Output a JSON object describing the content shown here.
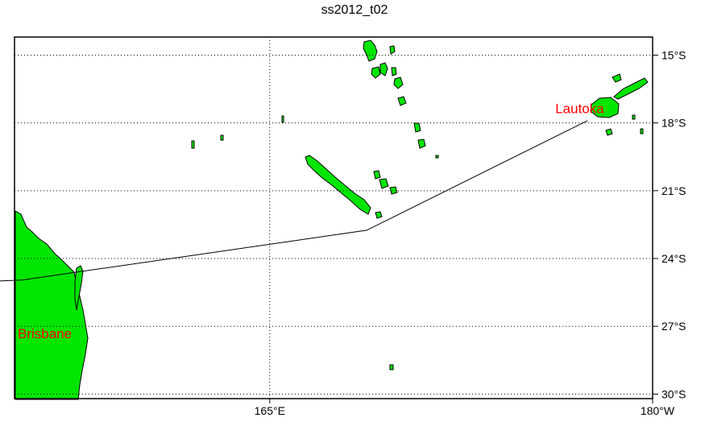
{
  "title": "ss2012_t02",
  "map": {
    "lon_range_deg_east": [
      155,
      180
    ],
    "lat_range": [
      "15°S",
      "30°S"
    ],
    "grid": true,
    "colors": {
      "land": "#00e600",
      "coastline": "#000000",
      "route": "#000000",
      "port_label": "#ff0000",
      "frame": "#000000",
      "background": "#ffffff"
    },
    "lat_ticks": [
      {
        "label": "15°S",
        "lat": -15
      },
      {
        "label": "18°S",
        "lat": -18
      },
      {
        "label": "21°S",
        "lat": -21
      },
      {
        "label": "24°S",
        "lat": -24
      },
      {
        "label": "27°S",
        "lat": -27
      },
      {
        "label": "30°S",
        "lat": -30
      }
    ],
    "lon_ticks": [
      {
        "label": "165°E",
        "lon": 165
      },
      {
        "label": "180°W",
        "lon": 180
      }
    ],
    "ports": [
      {
        "label": "Brisbane",
        "lon": 153.0,
        "lat": -27.5
      },
      {
        "label": "Lautoka",
        "lon": 177.45,
        "lat": -17.6
      }
    ],
    "route_points": [
      {
        "lon": 153.3,
        "lat": -25.05
      },
      {
        "lon": 155.3,
        "lat": -24.95
      },
      {
        "lon": 168.8,
        "lat": -22.75
      },
      {
        "lon": 177.45,
        "lat": -17.9
      }
    ]
  }
}
